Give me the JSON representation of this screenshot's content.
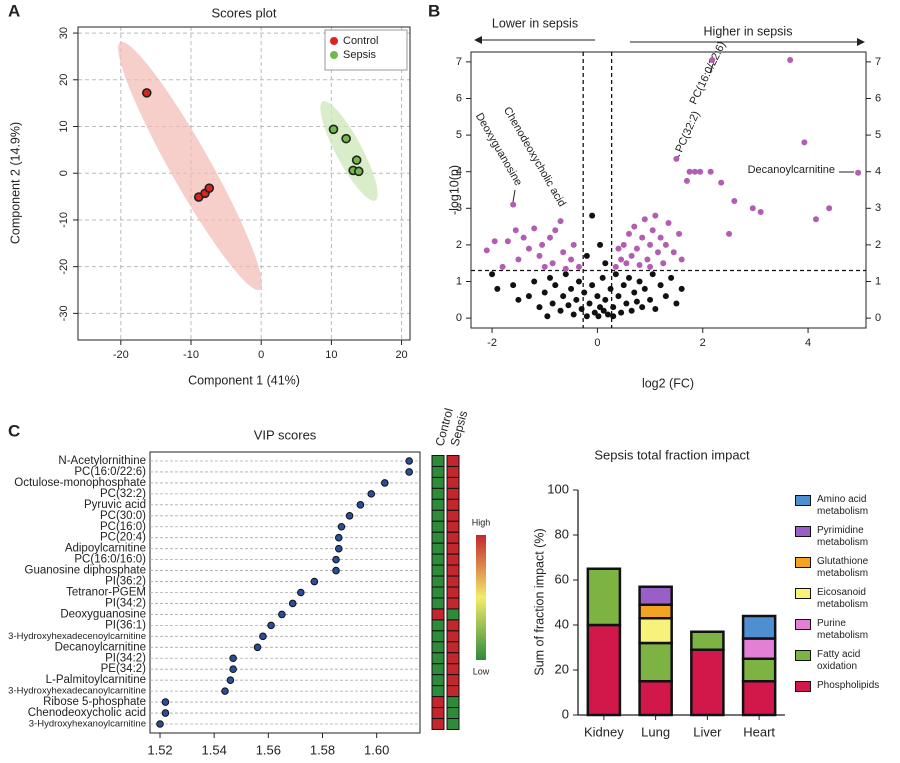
{
  "chart_data": [
    {
      "panel": "A",
      "type": "scatter",
      "title": "Scores plot",
      "x_label": "Component 1 (41%)",
      "y_label": "Component 2 (14.9%)",
      "xlim": [
        -26.1,
        21.2
      ],
      "ylim": [
        -35.7,
        31.3
      ],
      "xticks": [
        -20,
        -10,
        0,
        10,
        20
      ],
      "yticks": [
        -30,
        -20,
        -10,
        0,
        10,
        20,
        30
      ],
      "grid": true,
      "rotate_ytick_labels": true,
      "legend": "upper right",
      "edgecolor": "#222",
      "series": [
        {
          "name": "Control",
          "color": "#d7261e",
          "x": [
            -16.3,
            -8.9,
            -8.0,
            -7.4
          ],
          "values": [
            17.2,
            -5.1,
            -4.3,
            -3.2
          ]
        },
        {
          "name": "Sepsis",
          "color": "#72b84a",
          "x": [
            10.3,
            12.1,
            13.6,
            13.1,
            13.9
          ],
          "values": [
            9.4,
            7.4,
            2.8,
            0.6,
            0.4
          ]
        }
      ]
    },
    {
      "panel": "B",
      "type": "scatter",
      "x_label": "log2 (FC)",
      "y_label": "-log10(p)",
      "xlim": [
        -2.4,
        5.1
      ],
      "ylim": [
        -0.27,
        7.27
      ],
      "xticks": [
        -2,
        0,
        2,
        4
      ],
      "yticks": [
        0,
        1,
        2,
        3,
        4,
        5,
        6,
        7
      ],
      "mirror_yaxis": true,
      "thresholds": {
        "x": [
          -0.27,
          0.27
        ],
        "y": 1.3
      },
      "direction_labels": [
        "Lower in sepsis",
        "Higher in sepsis"
      ],
      "annotations": [
        "PC(16:0/22:6)",
        "PC(32:2)",
        "Decanoylcarnitine",
        "Chenodeoxycholic acid",
        "Deoxyguanosine"
      ],
      "series": [
        {
          "color": "#111111",
          "x": [
            -2.0,
            -1.9,
            -1.5,
            -1.2,
            -1.1,
            -1.0,
            -0.9,
            -0.85,
            -0.8,
            -0.7,
            -0.65,
            -0.6,
            -0.55,
            -0.5,
            -0.45,
            -0.4,
            -0.35,
            -0.3,
            -0.25,
            -0.2,
            -0.15,
            -0.1,
            -0.05,
            0,
            0.02,
            0.05,
            0.1,
            0.12,
            0.15,
            0.2,
            0.25,
            0.3,
            0.35,
            0.4,
            0.45,
            0.5,
            0.55,
            0.6,
            0.65,
            0.7,
            0.75,
            0.8,
            0.85,
            0.9,
            1.0,
            1.05,
            1.1,
            1.2,
            1.3,
            1.4,
            1.5,
            1.6,
            -1.3,
            -0.95,
            0.3,
            -0.1,
            0.05,
            -0.2,
            0.15,
            -1.6
          ],
          "values": [
            1.2,
            0.8,
            0.5,
            1.0,
            0.3,
            0.7,
            1.1,
            0.4,
            0.9,
            0.2,
            0.6,
            1.2,
            0.35,
            0.8,
            0.1,
            0.5,
            1.0,
            0.25,
            0.7,
            0.05,
            0.4,
            0.9,
            0.15,
            0.6,
            0.05,
            0.3,
            1.1,
            0.2,
            0.5,
            0.1,
            0.8,
            0.3,
            1.2,
            0.6,
            0.15,
            0.9,
            0.4,
            1.1,
            0.2,
            0.7,
            0.45,
            1.0,
            0.3,
            0.8,
            0.5,
            1.2,
            0.25,
            0.9,
            0.6,
            1.1,
            0.4,
            0.8,
            0.6,
            0.05,
            0.05,
            2.8,
            2.0,
            1.7,
            1.5,
            0.9
          ]
        },
        {
          "color": "#b25db3",
          "x": [
            -2.1,
            -1.95,
            -1.7,
            -1.6,
            -1.55,
            -1.5,
            -1.4,
            -1.3,
            -1.2,
            -1.1,
            -1.05,
            -0.9,
            -0.85,
            -0.8,
            -0.7,
            -0.65,
            -0.5,
            -0.45,
            -0.35,
            -1.8,
            -1.0,
            -0.6,
            0.35,
            0.45,
            0.5,
            0.55,
            0.6,
            0.65,
            0.7,
            0.75,
            0.8,
            0.85,
            0.9,
            0.95,
            1.0,
            1.05,
            1.1,
            1.15,
            1.2,
            1.25,
            1.3,
            1.35,
            1.45,
            1.55,
            0.4,
            1.0,
            1.6,
            1.5,
            1.75,
            1.85,
            1.95,
            2.15,
            1.7,
            2.35,
            2.6,
            2.5,
            2.95,
            3.1,
            4.15,
            4.4,
            2.18,
            3.66,
            3.93,
            4.95
          ],
          "values": [
            1.85,
            2.1,
            2.1,
            3.1,
            2.4,
            1.6,
            2.2,
            1.9,
            2.45,
            1.7,
            2.0,
            2.2,
            1.5,
            2.4,
            2.65,
            1.8,
            1.6,
            2.0,
            1.4,
            1.4,
            1.4,
            1.35,
            1.4,
            1.6,
            2.0,
            1.5,
            2.3,
            1.7,
            2.5,
            1.9,
            1.45,
            2.2,
            2.7,
            1.6,
            2.0,
            2.4,
            2.8,
            1.8,
            2.2,
            1.5,
            2.0,
            2.6,
            1.8,
            2.3,
            1.9,
            1.4,
            1.6,
            4.35,
            4.0,
            4.0,
            4.0,
            4.0,
            3.75,
            3.7,
            3.2,
            2.3,
            3.0,
            2.9,
            2.7,
            3.0,
            7.05,
            7.05,
            4.8,
            3.97
          ]
        }
      ]
    },
    {
      "panel": "C",
      "type": "dot",
      "title": "VIP scores",
      "color": "#2a4d9c",
      "categories": [
        "N-Acetylornithine",
        "PC(16:0/22:6)",
        "Octulose-monophosphate",
        "PC(32:2)",
        "Pyruvic acid",
        "PC(30:0)",
        "PC(16:0)",
        "PC(20:4)",
        "Adipoylcarnitine",
        "PC(16:0/16:0)",
        "Guanosine diphosphate",
        "PI(36:2)",
        "Tetranor-PGEM",
        "PI(34:2)",
        "Deoxyguanosine",
        "PI(36:1)",
        "3-Hydroxyhexadecenoylcarnitine",
        "Decanoylcarnitine",
        "PI(34:2)",
        "PE(34:2)",
        "L-Palmitoylcarnitine",
        "3-Hydroxyhexadecanoylcarnitine",
        "Ribose 5-phosphate",
        "Chenodeoxycholic acid",
        "3-Hydroxyhexanoylcarnitine"
      ],
      "values": [
        1.612,
        1.612,
        1.603,
        1.598,
        1.594,
        1.59,
        1.587,
        1.586,
        1.586,
        1.585,
        1.585,
        1.577,
        1.572,
        1.569,
        1.565,
        1.561,
        1.558,
        1.556,
        1.547,
        1.547,
        1.546,
        1.544,
        1.522,
        1.522,
        1.52
      ],
      "xlim": [
        1.5163,
        1.616
      ],
      "xticks": [
        1.52,
        1.54,
        1.56,
        1.58,
        {
          "value": 1.6,
          "label": "1.60"
        }
      ],
      "heatmap": {
        "columns": [
          "Control",
          "Sepsis"
        ],
        "colors": [
          "#2e8b3a",
          "#f3ec6a",
          "#c4262e"
        ],
        "scale_labels": [
          "Low",
          "High"
        ],
        "values": [
          [
            0,
            1
          ],
          [
            0,
            1
          ],
          [
            0,
            1
          ],
          [
            0,
            1
          ],
          [
            0,
            1
          ],
          [
            0,
            1
          ],
          [
            0,
            1
          ],
          [
            0,
            1
          ],
          [
            0,
            1
          ],
          [
            0,
            1
          ],
          [
            0,
            1
          ],
          [
            0,
            1
          ],
          [
            0,
            1
          ],
          [
            0,
            1
          ],
          [
            1,
            0
          ],
          [
            0,
            1
          ],
          [
            0,
            1
          ],
          [
            0,
            1
          ],
          [
            0,
            1
          ],
          [
            0,
            1
          ],
          [
            0,
            1
          ],
          [
            0,
            1
          ],
          [
            1,
            0
          ],
          [
            1,
            0
          ],
          [
            1,
            0
          ]
        ]
      }
    },
    {
      "type": "bar",
      "stacked": true,
      "title": "Sepsis total fraction impact",
      "y_label": "Sum of fraction impact (%)",
      "categories": [
        "Kidney",
        "Lung",
        "Liver",
        "Heart"
      ],
      "ylim": [
        0,
        100
      ],
      "yticks": [
        0,
        20,
        40,
        60,
        80,
        100
      ],
      "series": [
        {
          "name": "Phospholipids",
          "color": "#d2184a",
          "values": [
            40,
            15,
            29,
            15
          ]
        },
        {
          "name": "Fatty acid oxidation",
          "color": "#7cb342",
          "values": [
            25,
            17,
            8,
            10
          ]
        },
        {
          "name": "Purine metabolism",
          "color": "#e47fd6",
          "values": [
            0,
            0,
            0,
            9
          ]
        },
        {
          "name": "Eicosanoid metabolism",
          "color": "#f7f27a",
          "values": [
            0,
            11,
            0,
            0
          ]
        },
        {
          "name": "Glutathione metabolism",
          "color": "#f4a321",
          "values": [
            0,
            6,
            0,
            0
          ]
        },
        {
          "name": "Pyrimidine metabolism",
          "color": "#9a5fc7",
          "values": [
            0,
            8,
            0,
            0
          ]
        },
        {
          "name": "Amino acid metabolism",
          "color": "#4f8fd1",
          "values": [
            0,
            0,
            0,
            10
          ]
        }
      ]
    }
  ]
}
